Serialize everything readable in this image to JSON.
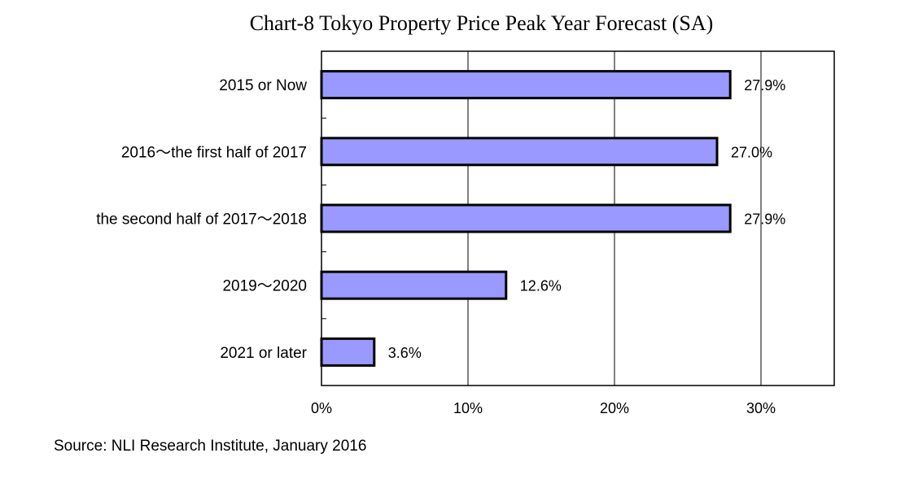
{
  "title": "Chart-8  Tokyo Property Price Peak Year Forecast (SA)",
  "source": "Source: NLI Research Institute, January 2016",
  "colors": {
    "bar_fill": "#9999ff",
    "bar_stroke": "#000000",
    "grid": "#000000"
  },
  "chart_data": {
    "type": "bar",
    "orientation": "horizontal",
    "categories": [
      "2015 or Now",
      "2016～the first half of 2017",
      "the second half of 2017～2018",
      "2019～2020",
      "2021 or later"
    ],
    "values": [
      27.9,
      27.0,
      27.9,
      12.6,
      3.6
    ],
    "value_labels": [
      "27.9%",
      "27.0%",
      "27.9%",
      "12.6%",
      "3.6%"
    ],
    "unit": "%",
    "xlim": [
      0,
      35
    ],
    "x_ticks": [
      0,
      10,
      20,
      30
    ],
    "x_tick_labels": [
      "0%",
      "10%",
      "20%",
      "30%"
    ],
    "grid": true
  }
}
